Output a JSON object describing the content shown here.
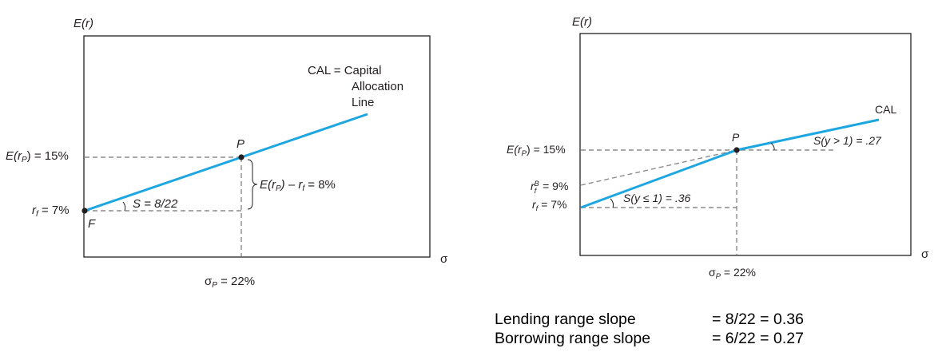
{
  "left_panel": {
    "y_axis_label": "E(r)",
    "x_axis_label": "σ",
    "erp_label": "E(r",
    "erp_sub": "P",
    "erp_value": ") = 15%",
    "rf_label": "r",
    "rf_sub": "f",
    "rf_value": " = 7%",
    "point_p": "P",
    "point_f": "F",
    "slope_label": "S = 8/22",
    "premium_a": "E(r",
    "premium_sub": "P",
    "premium_b": ") – r",
    "premium_sub2": "f",
    "premium_c": " = 8%",
    "sigma_label": "σ",
    "sigma_sub": "P",
    "sigma_value": " = 22%",
    "cal_line1": "CAL = Capital",
    "cal_line2": "Allocation",
    "cal_line3": "Line"
  },
  "right_panel": {
    "y_axis_label": "E(r)",
    "x_axis_label": "σ",
    "erp_label": "E(r",
    "erp_sub": "P",
    "erp_value": ") = 15%",
    "rfb_label": "r",
    "rfb_sup": "B",
    "rfb_sub": "f",
    "rfb_value": " = 9%",
    "rf_label": "r",
    "rf_sub": "f",
    "rf_value": " = 7%",
    "point_p": "P",
    "slope_low": "S(y ≤ 1) = .36",
    "slope_high": "S(y > 1) = .27",
    "cal_label": "CAL",
    "sigma_label": "σ",
    "sigma_sub": "P",
    "sigma_value": " = 22%"
  },
  "notes": [
    {
      "label": "Lending range slope",
      "value": "= 8/22 = 0.36"
    },
    {
      "label": "Borrowing range slope",
      "value": "= 6/22 = 0.27"
    }
  ],
  "colors": {
    "cal_line": "#1ea6e0",
    "dashes": "#8c8c8c"
  }
}
